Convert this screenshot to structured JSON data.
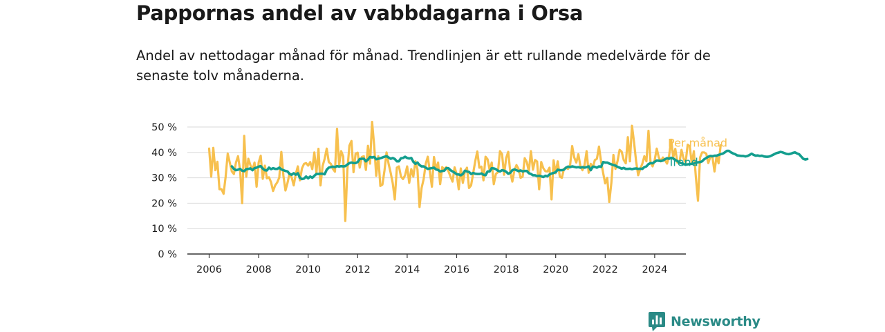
{
  "title": "Pappornas andel av vabbdagarna i Orsa",
  "subtitle": "Andel av nettodagar månad för månad. Trendlinjen är ett rullande medelvärde för de senaste tolv månaderna.",
  "brand": {
    "name": "Newsworthy",
    "color": "#2a8a86"
  },
  "chart_data": {
    "type": "line",
    "x_unit": "year",
    "y_unit": "%",
    "ylim": [
      0,
      50
    ],
    "y_ticks": [
      0,
      10,
      20,
      30,
      40,
      50
    ],
    "y_tick_labels": [
      "0 %",
      "10 %",
      "20 %",
      "30 %",
      "40 %",
      "50 %"
    ],
    "x_ticks": [
      2006,
      2008,
      2010,
      2012,
      2014,
      2016,
      2018,
      2020,
      2022,
      2024
    ],
    "x_tick_labels": [
      "2006",
      "2008",
      "2010",
      "2012",
      "2014",
      "2016",
      "2018",
      "2020",
      "2022",
      "2024"
    ],
    "xlim": [
      2005.1,
      2024.75
    ],
    "grid": true,
    "legend": "end-of-line labels",
    "series": [
      {
        "name": "Per månad",
        "color": "#f7c04e",
        "x_start": 2006.0,
        "x_step": 0.08333,
        "values": [
          41.5,
          30.5,
          41.8,
          33,
          36.3,
          25.5,
          25.5,
          23.7,
          30.5,
          39.5,
          36,
          32.5,
          31.5,
          36,
          38.5,
          33,
          20,
          46.5,
          30.5,
          37.5,
          35,
          33,
          36,
          26.5,
          36,
          38.7,
          29.6,
          34.8,
          29.8,
          30.2,
          28.3,
          24.8,
          27,
          28.2,
          30.1,
          40.2,
          30.8,
          25,
          28,
          31.8,
          30.2,
          27,
          31.5,
          34.5,
          29,
          33.7,
          35.5,
          35.8,
          34.8,
          36.2,
          33.4,
          40,
          32,
          41.4,
          27,
          34.6,
          37.5,
          41.5,
          36.2,
          35.5,
          33.5,
          32.4,
          49.3,
          35,
          40.5,
          38.4,
          13,
          33,
          42.7,
          44.5,
          32.2,
          39.5,
          39.9,
          34,
          38.2,
          38.5,
          33.1,
          42.6,
          35.6,
          52,
          42.8,
          30.8,
          38.5,
          26.8,
          27.3,
          32.8,
          40,
          35.5,
          32,
          27.9,
          21.5,
          34,
          34.5,
          30.5,
          29.5,
          31,
          34.5,
          28,
          33.4,
          30.5,
          36.5,
          33.3,
          18.5,
          26,
          29.5,
          35.5,
          38.3,
          32.5,
          26.5,
          38.2,
          33.3,
          36,
          27.5,
          34.2,
          33.4,
          34.2,
          32.6,
          30.5,
          28.5,
          34.1,
          31.5,
          25.5,
          33.7,
          28,
          32.5,
          34,
          26,
          27,
          31.8,
          36.5,
          40.4,
          34,
          34.4,
          29,
          38.3,
          37.3,
          33,
          36,
          27.5,
          31.5,
          32.2,
          40.5,
          39.3,
          31.2,
          37.8,
          40.2,
          32.2,
          28.5,
          33,
          35,
          33.5,
          30,
          30.5,
          37.7,
          36.2,
          32.5,
          40.5,
          33.2,
          37,
          36.4,
          25.5,
          36.2,
          33.8,
          32.6,
          32.5,
          34,
          21.5,
          36.9,
          31.8,
          36.5,
          30.5,
          30,
          33.5,
          34,
          33.5,
          35,
          42.5,
          38,
          36,
          39.3,
          34.5,
          33,
          35,
          40.5,
          32,
          35.5,
          34,
          37,
          37.5,
          42.3,
          36.5,
          32,
          27.8,
          30,
          20.5,
          28,
          39,
          33.5,
          36.6,
          41,
          40.3,
          37,
          35.7,
          46,
          36.5,
          50.5,
          44,
          36.5,
          31,
          33.5,
          35.5,
          38.5,
          36.5,
          48.5,
          36,
          34.5,
          37,
          41.5,
          38,
          36.5,
          38,
          36.9,
          35.6,
          38.7,
          45,
          38,
          41.4,
          36,
          36,
          41,
          37.6,
          36,
          43,
          42.5,
          35.5,
          40.5,
          30,
          21,
          38,
          40,
          40,
          39.5,
          35.8,
          38.3,
          38.2,
          32.5,
          38.5,
          35.7,
          42.8
        ]
      },
      {
        "name": "Trend",
        "color": "#139e8e",
        "x_start": 2006.917,
        "x_step": 0.08333,
        "values": [
          34.5,
          33.5,
          33,
          33.2,
          33.5,
          32.8,
          32.6,
          33.4,
          33.5,
          33.7,
          33,
          33.8,
          34,
          34.4,
          34.6,
          33.6,
          33,
          32.9,
          34,
          33.4,
          33.8,
          33.5,
          33.5,
          34,
          33.3,
          33,
          32.7,
          32.5,
          31.5,
          31.2,
          31.8,
          31.2,
          31.8,
          30,
          29.5,
          29.7,
          30.5,
          29.8,
          30.5,
          30,
          30.8,
          31.5,
          31.5,
          31.6,
          31.6,
          31.4,
          33.2,
          34,
          34.2,
          34.4,
          34.2,
          34.6,
          34.4,
          34.6,
          34.5,
          34.6,
          35.2,
          35.8,
          36,
          35.8,
          35.8,
          36.2,
          37.4,
          37.5,
          37.5,
          36.5,
          37.2,
          38.2,
          38,
          38.2,
          37.3,
          37.5,
          37.7,
          38,
          38.3,
          38.5,
          38,
          37.5,
          37.8,
          37.4,
          36.5,
          36.5,
          37.7,
          37.8,
          38.3,
          37.8,
          37.6,
          37.8,
          36.3,
          35.5,
          36,
          35,
          34.5,
          34.5,
          34,
          33.5,
          33.7,
          33.8,
          34,
          33.3,
          33.1,
          32.5,
          32.7,
          32.8,
          33.8,
          33.8,
          33,
          32.5,
          32,
          31.4,
          31.3,
          31,
          31.5,
          32.8,
          32.5,
          32.3,
          31.5,
          31.9,
          31.6,
          31.5,
          31.5,
          31.7,
          31.2,
          31,
          32.5,
          32.5,
          33.8,
          33.7,
          33.4,
          32.8,
          32.5,
          33,
          32.8,
          32.4,
          31.6,
          32,
          33,
          33.3,
          33,
          32.6,
          32.9,
          32.5,
          32.7,
          32.7,
          31.8,
          31.5,
          31,
          31,
          30.7,
          30.8,
          30.6,
          30.3,
          30.8,
          30.6,
          31.3,
          31.7,
          31.9,
          32.2,
          33.2,
          33,
          33,
          33.2,
          34,
          34.4,
          34.2,
          34.5,
          34.3,
          34.1,
          34.2,
          34,
          34.2,
          34,
          34.2,
          34.5,
          33,
          34.4,
          34.3,
          34,
          34.5,
          34.3,
          36.2,
          36,
          36,
          35.6,
          35.3,
          35,
          34.8,
          34.3,
          34,
          33.6,
          33.9,
          33.5,
          33.5,
          33.6,
          33.4,
          33.6,
          33.7,
          33.5,
          33.6,
          33.5,
          34.2,
          34.5,
          35.4,
          35.8,
          35.7,
          36.3,
          36.8,
          36.7,
          36.6,
          36.8,
          37.3,
          37.7,
          37.5,
          37.9,
          37.6,
          37,
          36.6,
          36,
          35.7,
          35.4,
          35.2,
          35.3,
          35.4,
          35.5,
          35.6,
          36,
          36.1,
          36.2,
          36.5,
          37.3,
          37.8,
          38.3,
          38.6,
          38.5,
          38.7,
          38.7,
          39,
          39.3,
          39.5,
          40,
          40.6,
          40.6,
          40,
          39.6,
          39.3,
          38.8,
          38.7,
          38.6,
          38.6,
          38.4,
          38.6,
          39,
          39.5,
          39,
          38.7,
          38.8,
          38.6,
          38.7,
          38.4,
          38.3,
          38.3,
          38.5,
          38.9,
          39.3,
          39.7,
          39.9,
          40.2,
          40,
          39.7,
          39.4,
          39.3,
          39.5,
          39.8,
          40,
          39.6,
          39.3,
          38.4,
          37.5,
          37.2,
          37.4
        ]
      }
    ]
  }
}
